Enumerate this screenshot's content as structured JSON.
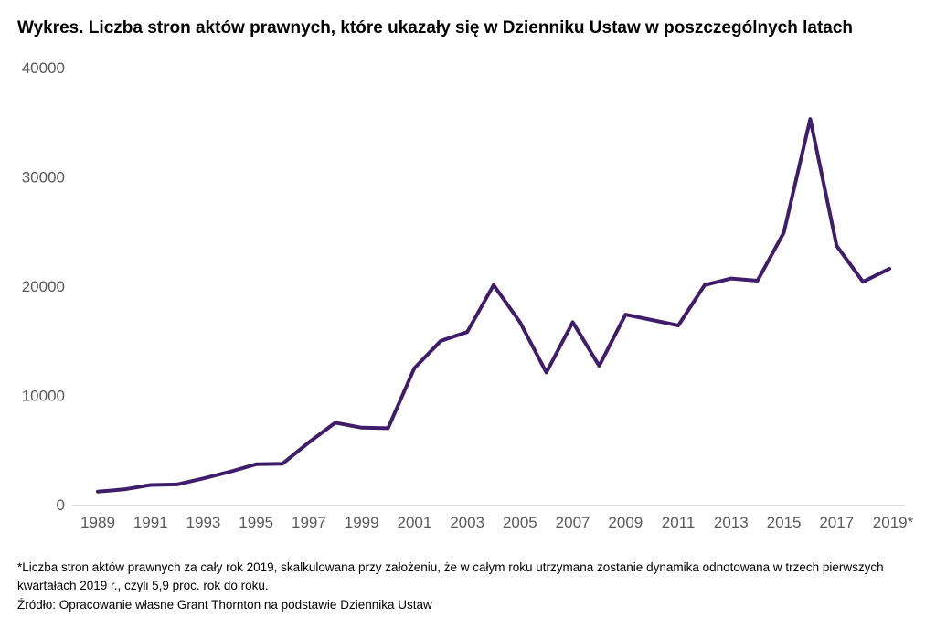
{
  "chart_data": {
    "type": "line",
    "title": "Wykres. Liczba stron aktów prawnych, które ukazały się w Dzienniku Ustaw w poszczególnych latach",
    "xlabel": "",
    "ylabel": "",
    "x": [
      1989,
      1990,
      1991,
      1992,
      1993,
      1994,
      1995,
      1996,
      1997,
      1998,
      1999,
      2000,
      2001,
      2002,
      2003,
      2004,
      2005,
      2006,
      2007,
      2008,
      2009,
      2010,
      2011,
      2012,
      2013,
      2014,
      2015,
      2016,
      2017,
      2018,
      2019
    ],
    "x_tick_labels": [
      "1989",
      "1991",
      "1993",
      "1995",
      "1997",
      "1999",
      "2001",
      "2003",
      "2005",
      "2007",
      "2009",
      "2011",
      "2013",
      "2015",
      "2017",
      "2019*"
    ],
    "y_tick_labels": [
      "0",
      "10000",
      "20000",
      "30000",
      "40000"
    ],
    "ylim": [
      0,
      40000
    ],
    "series": [
      {
        "values": [
          1200,
          1400,
          1800,
          1850,
          2400,
          3000,
          3700,
          3750,
          5700,
          7500,
          7050,
          7000,
          12500,
          15000,
          15800,
          20100,
          16700,
          12100,
          16700,
          12700,
          17400,
          16900,
          16400,
          20100,
          20700,
          20500,
          24900,
          35300,
          23700,
          20400,
          21600
        ],
        "color": "#3f1d6b"
      }
    ],
    "grid": false,
    "legend": "none"
  },
  "footnote": {
    "asterisk_note": "*Liczba stron aktów prawnych za cały rok 2019, skalkulowana przy założeniu, że w całym roku utrzymana zostanie dynamika odnotowana w trzech pierwszych kwartałach 2019 r., czyli 5,9 proc. rok do roku.",
    "source": "Źródło: Opracowanie własne Grant Thornton na podstawie Dziennika Ustaw"
  }
}
